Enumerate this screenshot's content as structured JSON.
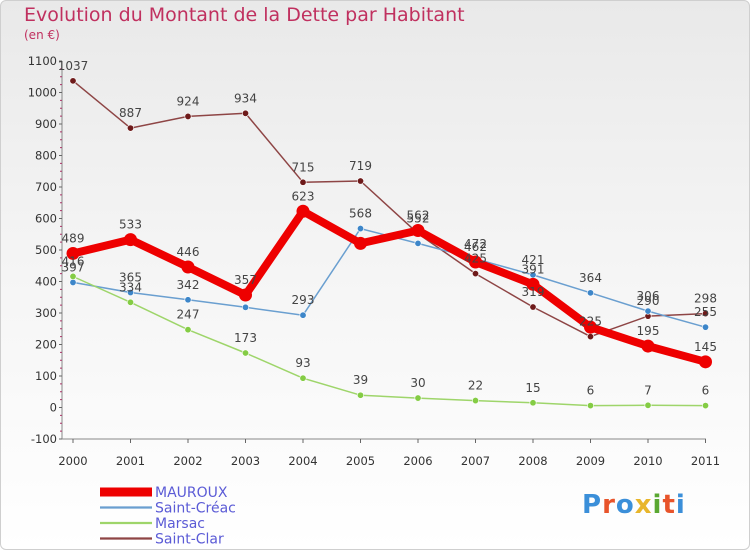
{
  "title": "Evolution du Montant de la Dette par Habitant",
  "subtitle": "(en €)",
  "logo": {
    "text": "Proxiti",
    "letter_colors": [
      "#3b8fd9",
      "#e8542b",
      "#3b8fd9",
      "#e8b62b",
      "#5aa832",
      "#e8542b",
      "#3b8fd9"
    ]
  },
  "chart_data": {
    "type": "line",
    "x": [
      "2000",
      "2001",
      "2002",
      "2003",
      "2004",
      "2005",
      "2006",
      "2007",
      "2008",
      "2009",
      "2010",
      "2011"
    ],
    "ylim": [
      -100,
      1100
    ],
    "yticks": [
      -100,
      0,
      100,
      200,
      300,
      400,
      500,
      600,
      700,
      800,
      900,
      1000,
      1100
    ],
    "grid": false,
    "legend_position": "bottom-left",
    "series": [
      {
        "name": "MAUROUX",
        "color": "#ee0000",
        "marker_color": "#ee0000",
        "width": 8,
        "marker_r": 6.5,
        "values": [
          489,
          533,
          446,
          357,
          623,
          521,
          562,
          462,
          391,
          255,
          195,
          145
        ],
        "labels": [
          "489",
          "533",
          "446",
          "357",
          "623",
          "",
          "562",
          "462",
          "391",
          "",
          "195",
          "145"
        ]
      },
      {
        "name": "Saint-Créac",
        "color": "#6a9fd0",
        "marker_color": "#3d86c9",
        "width": 1.5,
        "marker_r": 3.2,
        "values": [
          397,
          365,
          342,
          318,
          293,
          568,
          521,
          472,
          421,
          364,
          306,
          255
        ],
        "labels": [
          "397",
          "365",
          "342",
          "",
          "293",
          "568",
          "",
          "472",
          "421",
          "364",
          "306",
          "255"
        ]
      },
      {
        "name": "Marsac",
        "color": "#9ed56a",
        "marker_color": "#84cc44",
        "width": 1.5,
        "marker_r": 3.2,
        "values": [
          416,
          334,
          247,
          173,
          93,
          39,
          30,
          22,
          15,
          6,
          7,
          6
        ],
        "labels": [
          "416",
          "334",
          "247",
          "173",
          "93",
          "39",
          "30",
          "22",
          "15",
          "6",
          "7",
          "6"
        ]
      },
      {
        "name": "Saint-Clar",
        "color": "#8e4545",
        "marker_color": "#6e1a1a",
        "width": 1.5,
        "marker_r": 3.2,
        "values": [
          1037,
          887,
          924,
          934,
          715,
          719,
          552,
          425,
          319,
          225,
          290,
          298
        ],
        "labels": [
          "1037",
          "887",
          "924",
          "934",
          "715",
          "719",
          "552",
          "425",
          "319",
          "225",
          "290",
          "298"
        ]
      }
    ]
  }
}
